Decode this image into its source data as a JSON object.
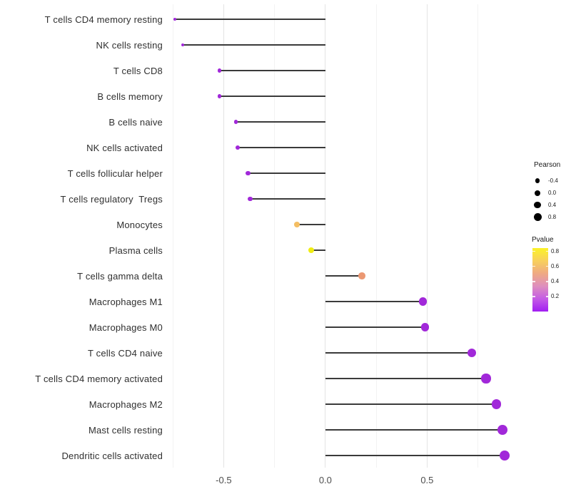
{
  "chart_data": {
    "type": "scatter",
    "variant": "lollipop",
    "title": "",
    "xlabel": "",
    "ylabel": "",
    "xlim": [
      -0.768,
      0.997
    ],
    "grid": "vertical-only",
    "legend_position": "right",
    "size_encoding": "Pearson",
    "color_encoding": "Pvalue",
    "x_ticks_major": {
      "values": [
        -0.5,
        0.0,
        0.5
      ],
      "labels": [
        "-0.5",
        "0.0",
        "0.5"
      ]
    },
    "x_ticks_minor": [
      -0.75,
      -0.25,
      0.25,
      0.75
    ],
    "points": [
      {
        "label": "T cells CD4 memory resting",
        "pearson": -0.74,
        "color": "#A128D9"
      },
      {
        "label": "NK cells resting",
        "pearson": -0.7,
        "color": "#A128D9"
      },
      {
        "label": "T cells CD8",
        "pearson": -0.52,
        "color": "#A128D9"
      },
      {
        "label": "B cells memory",
        "pearson": -0.52,
        "color": "#A128D9"
      },
      {
        "label": "B cells naive",
        "pearson": -0.44,
        "color": "#A128D9"
      },
      {
        "label": "NK cells activated",
        "pearson": -0.43,
        "color": "#A128D9"
      },
      {
        "label": "T cells follicular helper",
        "pearson": -0.38,
        "color": "#A128D9"
      },
      {
        "label": "T cells regulatory  Tregs",
        "pearson": -0.37,
        "color": "#A128D9"
      },
      {
        "label": "Monocytes",
        "pearson": -0.14,
        "color": "#F4BE63"
      },
      {
        "label": "Plasma cells",
        "pearson": -0.07,
        "color": "#F0ED12"
      },
      {
        "label": "T cells gamma delta",
        "pearson": 0.18,
        "color": "#EB9873"
      },
      {
        "label": "Macrophages M1",
        "pearson": 0.48,
        "color": "#A128D9"
      },
      {
        "label": "Macrophages M0",
        "pearson": 0.49,
        "color": "#A128D9"
      },
      {
        "label": "T cells CD4 naive",
        "pearson": 0.72,
        "color": "#A128D9"
      },
      {
        "label": "T cells CD4 memory activated",
        "pearson": 0.79,
        "color": "#A128D9"
      },
      {
        "label": "Macrophages M2",
        "pearson": 0.84,
        "color": "#A128D9"
      },
      {
        "label": "Mast cells resting",
        "pearson": 0.87,
        "color": "#A128D9"
      },
      {
        "label": "Dendritic cells activated",
        "pearson": 0.88,
        "color": "#A128D9"
      }
    ]
  },
  "legend": {
    "pearson": {
      "title": "Pearson",
      "dot_color": "#000000",
      "items": [
        {
          "label": "-0.4",
          "diameter": 6.5
        },
        {
          "label": "0.0",
          "diameter": 8
        },
        {
          "label": "0.4",
          "diameter": 9.5
        },
        {
          "label": "0.8",
          "diameter": 11
        }
      ]
    },
    "pvalue": {
      "title": "Pvalue",
      "tick_labels": [
        "0.8",
        "0.6",
        "0.4",
        "0.2"
      ],
      "gradient_top_to_bottom": [
        "#FBF227",
        "#F8D05C",
        "#EFA983",
        "#DE8FBE",
        "#C45BE5",
        "#A11EF2"
      ]
    }
  },
  "colors": {
    "background": "#FFFFFF",
    "stem": "#3A3A3A",
    "grid_major": "#E4E4E4",
    "grid_minor": "#F2F2F2",
    "axis_tick_text": "#4D4D4D",
    "y_label_text": "#2F2F2F"
  }
}
